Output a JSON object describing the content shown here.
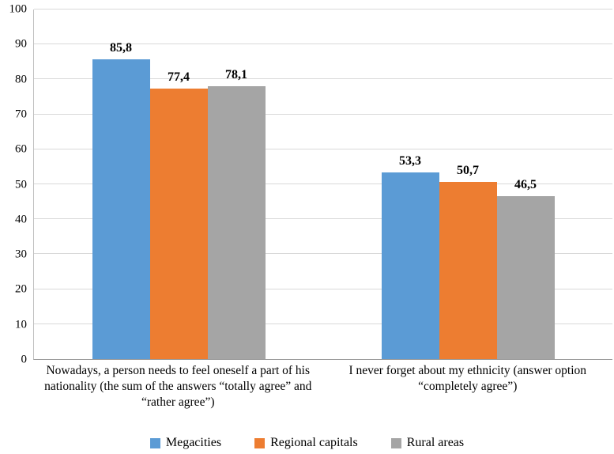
{
  "chart_data": {
    "type": "bar",
    "title": "",
    "xlabel": "",
    "ylabel": "",
    "ylim": [
      0,
      100
    ],
    "ytick_step": 10,
    "grid": true,
    "legend_position": "bottom",
    "categories": [
      "Nowadays, a person needs to feel oneself a part of his nationality (the sum of the answers “totally agree” and “rather agree”)",
      "I never forget about my ethnicity (answer option “completely agree”)"
    ],
    "series": [
      {
        "name": "Megacities",
        "color": "#5B9BD5",
        "values": [
          85.8,
          53.3
        ],
        "labels": [
          "85,8",
          "53,3"
        ]
      },
      {
        "name": "Regional capitals",
        "color": "#ED7D31",
        "values": [
          77.4,
          50.7
        ],
        "labels": [
          "77,4",
          "50,7"
        ]
      },
      {
        "name": "Rural areas",
        "color": "#A5A5A5",
        "values": [
          78.1,
          46.5
        ],
        "labels": [
          "78,1",
          "46,5"
        ]
      }
    ]
  }
}
